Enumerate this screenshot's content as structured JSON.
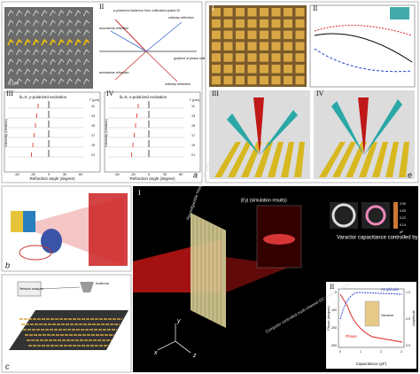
{
  "panels": {
    "a": {
      "label": "a",
      "sub": [
        "I",
        "II",
        "III",
        "IV"
      ],
      "scale_bar": "2 μm",
      "period": "Γ",
      "diagram": [
        "p-polarized incidence from collimated quartz-W",
        "ordinary reflection",
        "anomalous reflection",
        "anomalous refraction",
        "ordinary refraction",
        "gradient of phase shift"
      ],
      "plot_titles": [
        "θᵢ=0, y-polarized excitation",
        "θᵢ=0, x-polarized excitation"
      ],
      "x_label": "Refraction angle (degree)",
      "y_label": "Intensity (relative)",
      "gamma_label": "Γ (μm)",
      "gammas": [
        "11",
        "13",
        "15",
        "17",
        "19",
        "21"
      ],
      "x_ticks": [
        "-60",
        "-30",
        "0",
        "30",
        "60"
      ]
    },
    "b": {
      "label": "b"
    },
    "c": {
      "label": "c",
      "analyzer": "Network analyzer",
      "antenna": "Antenna"
    },
    "d": {
      "label": "d",
      "sub": [
        "I",
        "II"
      ],
      "lens": "Reconfigurable Huygens' Metalens",
      "field": "|Ey| (simulation results)",
      "varactor_note": "Varactor capacitance controlled by voltage",
      "colorbar": [
        "3.90",
        "0.63",
        "0.22",
        "0.14"
      ],
      "colorbar_unit": "pF",
      "sources": "Computer controlled multi-channel DC voltage sources",
      "axes": [
        "x",
        "y",
        "z"
      ],
      "inset": {
        "y_label": "Phase (degree)",
        "y2_label": "Amplitude",
        "x_label": "Capacitance (pF)",
        "amplitude": "Amplitude",
        "phase": "Phase",
        "varactor": "Varactor",
        "x_ticks": [
          "0",
          "1",
          "2",
          "3"
        ],
        "y_ticks": [
          "0",
          "-100",
          "-200",
          "-300"
        ],
        "y2_ticks": [
          "1.0",
          "0.5",
          "0.0"
        ]
      }
    },
    "e": {
      "label": "e",
      "sub": [
        "I",
        "II",
        "III",
        "IV"
      ]
    }
  }
}
